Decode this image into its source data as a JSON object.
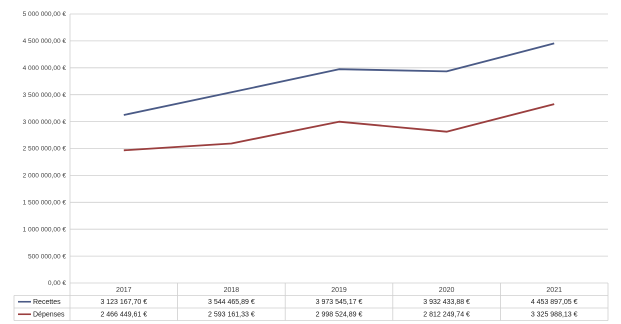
{
  "chart_data": {
    "type": "line",
    "title": "",
    "xlabel": "",
    "ylabel": "",
    "ylim": [
      0,
      5000000
    ],
    "y_tick_step": 500000,
    "y_tick_labels": [
      "0,00 €",
      "500 000,00 €",
      "1 000 000,00 €",
      "1 500 000,00 €",
      "2 000 000,00 €",
      "2 500 000,00 €",
      "3 000 000,00 €",
      "3 500 000,00 €",
      "4 000 000,00 €",
      "4 500 000,00 €",
      "5 000 000,00 €"
    ],
    "grid": true,
    "legend": "data-table-left",
    "categories": [
      "2017",
      "2018",
      "2019",
      "2020",
      "2021"
    ],
    "series": [
      {
        "name": "Recettes",
        "color": "#4a5a86",
        "values": [
          3123167.7,
          3544465.89,
          3973545.17,
          3932433.88,
          4453897.05
        ],
        "labels": [
          "3 123 167,70 €",
          "3 544 465,89 €",
          "3 973 545,17 €",
          "3 932 433,88 €",
          "4 453 897,05 €"
        ]
      },
      {
        "name": "Dépenses",
        "color": "#9a3e3e",
        "values": [
          2466449.61,
          2593161.33,
          2998524.89,
          2812249.74,
          3325988.13
        ],
        "labels": [
          "2 466 449,61 €",
          "2 593 161,33 €",
          "2 998 524,89 €",
          "2 812 249,74 €",
          "3 325 988,13 €"
        ]
      }
    ]
  }
}
